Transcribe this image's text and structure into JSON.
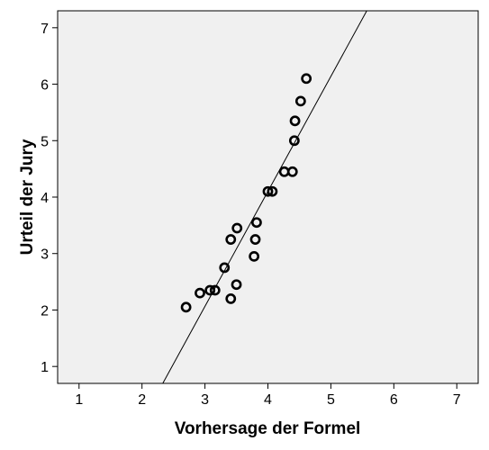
{
  "chart_data": {
    "type": "scatter",
    "xlabel": "Vorhersage der Formel",
    "ylabel": "Urteil der Jury",
    "xlim": [
      0.66,
      7.34
    ],
    "ylim": [
      0.7,
      7.3
    ],
    "xticks": [
      1,
      2,
      3,
      4,
      5,
      6,
      7
    ],
    "yticks": [
      1,
      2,
      3,
      4,
      5,
      6,
      7
    ],
    "grid": false,
    "colors": {
      "plot_background": "#f0f0f0",
      "marker": "#000000",
      "line": "#000000"
    },
    "points": [
      {
        "x": 2.7,
        "y": 2.05
      },
      {
        "x": 2.92,
        "y": 2.3
      },
      {
        "x": 3.08,
        "y": 2.35
      },
      {
        "x": 3.16,
        "y": 2.35
      },
      {
        "x": 3.31,
        "y": 2.75
      },
      {
        "x": 3.41,
        "y": 3.25
      },
      {
        "x": 3.41,
        "y": 2.2
      },
      {
        "x": 3.5,
        "y": 2.45
      },
      {
        "x": 3.51,
        "y": 3.45
      },
      {
        "x": 3.78,
        "y": 2.95
      },
      {
        "x": 3.8,
        "y": 3.25
      },
      {
        "x": 3.82,
        "y": 3.55
      },
      {
        "x": 4.0,
        "y": 4.1
      },
      {
        "x": 4.07,
        "y": 4.1
      },
      {
        "x": 4.26,
        "y": 4.45
      },
      {
        "x": 4.39,
        "y": 4.45
      },
      {
        "x": 4.42,
        "y": 5.0
      },
      {
        "x": 4.43,
        "y": 5.35
      },
      {
        "x": 4.52,
        "y": 5.7
      },
      {
        "x": 4.61,
        "y": 6.1
      }
    ],
    "fit_line": {
      "x1": 2.33,
      "y1": 0.7,
      "x2": 5.57,
      "y2": 7.3
    }
  }
}
